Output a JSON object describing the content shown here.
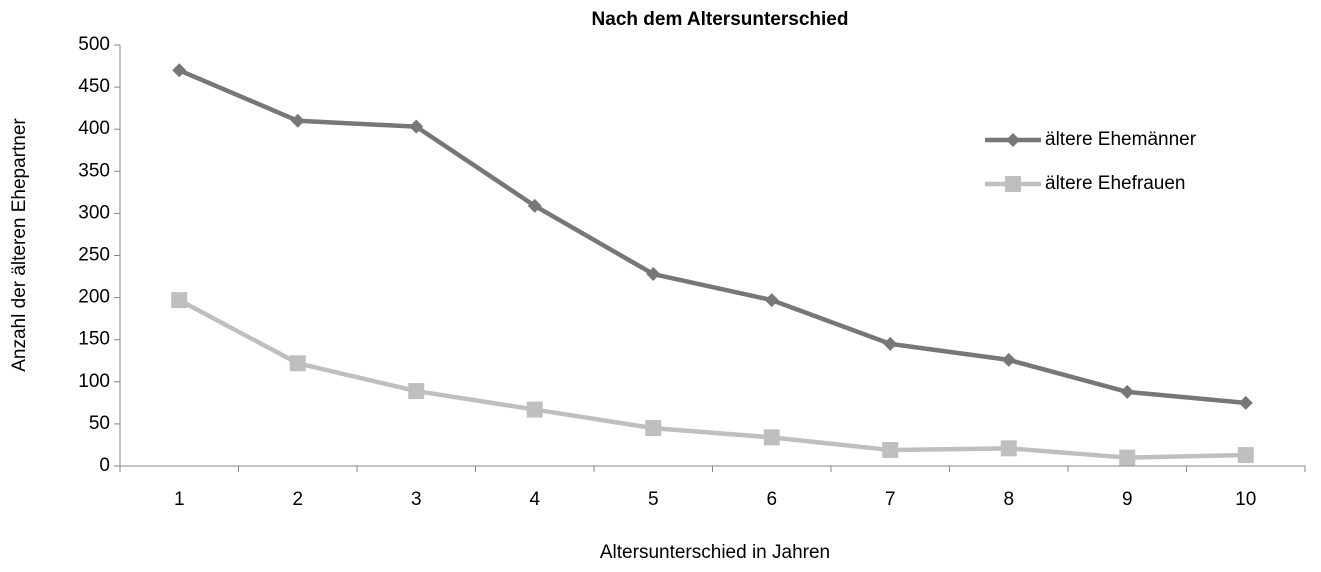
{
  "chart_data": {
    "type": "line",
    "title": "Nach dem Altersunterschied",
    "x_label": "Altersunterschied in Jahren",
    "y_label": "Anzahl der älteren Ehepartner",
    "categories": [
      "1",
      "2",
      "3",
      "4",
      "5",
      "6",
      "7",
      "8",
      "9",
      "10"
    ],
    "series": [
      {
        "name": "ältere Ehemänner",
        "color": "#777777",
        "marker": "diamond",
        "values": [
          470,
          410,
          403,
          309,
          228,
          197,
          145,
          126,
          88,
          75
        ]
      },
      {
        "name": "ältere Ehefrauen",
        "color": "#bfbfbf",
        "marker": "square",
        "values": [
          197,
          122,
          89,
          67,
          45,
          34,
          19,
          21,
          10,
          13
        ]
      }
    ],
    "ylim": [
      0,
      500
    ],
    "yticks": [
      0,
      50,
      100,
      150,
      200,
      250,
      300,
      350,
      400,
      450,
      500
    ],
    "grid": false,
    "legend": "right"
  }
}
